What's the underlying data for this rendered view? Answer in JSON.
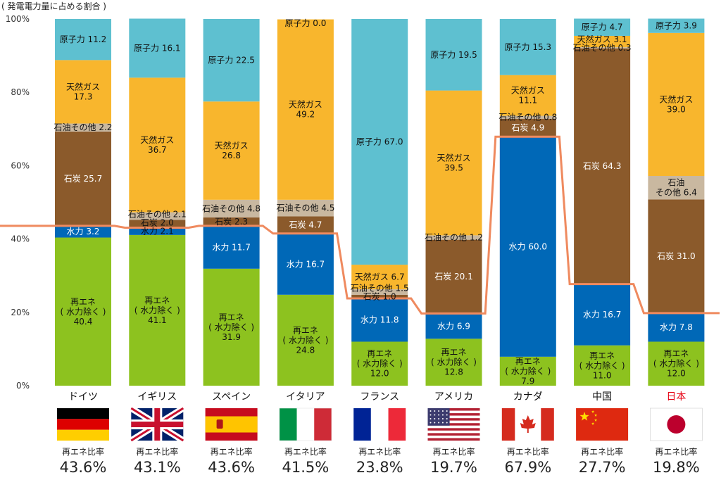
{
  "unit_label": "( 発電電力量に占める割合 )",
  "ratio_caption": "再エネ比率",
  "chart_data": {
    "type": "bar",
    "stacked": true,
    "ylim": [
      0,
      100
    ],
    "yticks": [
      "0%",
      "20%",
      "40%",
      "60%",
      "80%",
      "100%"
    ],
    "legend": "none",
    "grid": false,
    "colors": {
      "renewable": "#8dc21f",
      "hydro": "#0068b7",
      "coal": "#8b5a2b",
      "oil": "#c9b8a0",
      "gas": "#f8b62d",
      "nuclear": "#5ec0d0",
      "line": "#ef8a5f"
    },
    "categories": [
      "ドイツ",
      "イギリス",
      "スペイン",
      "イタリア",
      "フランス",
      "アメリカ",
      "カナダ",
      "中国",
      "日本"
    ],
    "ratios": [
      "43.6%",
      "43.1%",
      "43.6%",
      "41.5%",
      "23.8%",
      "19.7%",
      "67.9%",
      "27.7%",
      "19.8%"
    ],
    "ratio_values": [
      43.6,
      43.1,
      43.6,
      41.5,
      23.8,
      19.7,
      67.9,
      27.7,
      19.8
    ],
    "flags": [
      "germany",
      "uk",
      "spain",
      "italy",
      "france",
      "usa",
      "canada",
      "china",
      "japan"
    ],
    "countries": [
      {
        "name": "ドイツ",
        "segments": [
          {
            "key": "renewable",
            "value": 40.4,
            "label": [
              "再エネ",
              "( 水力除く )",
              "40.4"
            ]
          },
          {
            "key": "hydro",
            "value": 3.2,
            "label": [
              "水力 3.2"
            ]
          },
          {
            "key": "coal",
            "value": 25.7,
            "label": [
              "石炭 25.7"
            ]
          },
          {
            "key": "oil",
            "value": 2.2,
            "label": [
              "石油その他 2.2"
            ]
          },
          {
            "key": "gas",
            "value": 17.3,
            "label": [
              "天然ガス",
              "17.3"
            ]
          },
          {
            "key": "nuclear",
            "value": 11.2,
            "label": [
              "原子力 11.2"
            ]
          }
        ]
      },
      {
        "name": "イギリス",
        "segments": [
          {
            "key": "renewable",
            "value": 41.1,
            "label": [
              "再エネ",
              "( 水力除く )",
              "41.1"
            ]
          },
          {
            "key": "hydro",
            "value": 2.1,
            "label": [
              "水力 2.1"
            ]
          },
          {
            "key": "coal",
            "value": 2.0,
            "label": [
              "石炭 2.0"
            ]
          },
          {
            "key": "oil",
            "value": 2.1,
            "label": [
              "石油その他 2.1"
            ]
          },
          {
            "key": "gas",
            "value": 36.7,
            "label": [
              "天然ガス",
              "36.7"
            ]
          },
          {
            "key": "nuclear",
            "value": 16.1,
            "label": [
              "原子力 16.1"
            ]
          }
        ]
      },
      {
        "name": "スペイン",
        "segments": [
          {
            "key": "renewable",
            "value": 31.9,
            "label": [
              "再エネ",
              "( 水力除く )",
              "31.9"
            ]
          },
          {
            "key": "hydro",
            "value": 11.7,
            "label": [
              "水力 11.7"
            ]
          },
          {
            "key": "coal",
            "value": 2.3,
            "label": [
              "石炭 2.3"
            ]
          },
          {
            "key": "oil",
            "value": 4.8,
            "label": [
              "石油その他 4.8"
            ]
          },
          {
            "key": "gas",
            "value": 26.8,
            "label": [
              "天然ガス",
              "26.8"
            ]
          },
          {
            "key": "nuclear",
            "value": 22.5,
            "label": [
              "原子力 22.5"
            ]
          }
        ]
      },
      {
        "name": "イタリア",
        "segments": [
          {
            "key": "renewable",
            "value": 24.8,
            "label": [
              "再エネ",
              "( 水力除く )",
              "24.8"
            ]
          },
          {
            "key": "hydro",
            "value": 16.7,
            "label": [
              "水力 16.7"
            ]
          },
          {
            "key": "coal",
            "value": 4.7,
            "label": [
              "石炭 4.7"
            ]
          },
          {
            "key": "oil",
            "value": 4.5,
            "label": [
              "石油その他 4.5"
            ]
          },
          {
            "key": "gas",
            "value": 49.2,
            "label": [
              "天然ガス",
              "49.2"
            ]
          },
          {
            "key": "nuclear",
            "value": 0.0,
            "label": [
              "原子力 0.0"
            ]
          }
        ]
      },
      {
        "name": "フランス",
        "segments": [
          {
            "key": "renewable",
            "value": 12.0,
            "label": [
              "再エネ",
              "( 水力除く )",
              "12.0"
            ]
          },
          {
            "key": "hydro",
            "value": 11.8,
            "label": [
              "水力 11.8"
            ]
          },
          {
            "key": "coal",
            "value": 1.0,
            "label": [
              "石炭 1.0"
            ]
          },
          {
            "key": "oil",
            "value": 1.5,
            "label": [
              "石油その他 1.5"
            ]
          },
          {
            "key": "gas",
            "value": 6.7,
            "label": [
              "天然ガス 6.7"
            ]
          },
          {
            "key": "nuclear",
            "value": 67.0,
            "label": [
              "原子力 67.0"
            ]
          }
        ]
      },
      {
        "name": "アメリカ",
        "segments": [
          {
            "key": "renewable",
            "value": 12.8,
            "label": [
              "再エネ",
              "( 水力除く )",
              "12.8"
            ]
          },
          {
            "key": "hydro",
            "value": 6.9,
            "label": [
              "水力 6.9"
            ]
          },
          {
            "key": "coal",
            "value": 20.1,
            "label": [
              "石炭 20.1"
            ]
          },
          {
            "key": "oil",
            "value": 1.2,
            "label": [
              "石油その他 1.2"
            ]
          },
          {
            "key": "gas",
            "value": 39.5,
            "label": [
              "天然ガス",
              "39.5"
            ]
          },
          {
            "key": "nuclear",
            "value": 19.5,
            "label": [
              "原子力 19.5"
            ]
          }
        ]
      },
      {
        "name": "カナダ",
        "segments": [
          {
            "key": "renewable",
            "value": 7.9,
            "label": [
              "再エネ",
              "( 水力除く )",
              "7.9"
            ]
          },
          {
            "key": "hydro",
            "value": 60.0,
            "label": [
              "水力 60.0"
            ]
          },
          {
            "key": "coal",
            "value": 4.9,
            "label": [
              "石炭 4.9"
            ]
          },
          {
            "key": "oil",
            "value": 0.8,
            "label": [
              "石油その他 0.8"
            ]
          },
          {
            "key": "gas",
            "value": 11.1,
            "label": [
              "天然ガス",
              "11.1"
            ]
          },
          {
            "key": "nuclear",
            "value": 15.3,
            "label": [
              "原子力 15.3"
            ]
          }
        ]
      },
      {
        "name": "中国",
        "segments": [
          {
            "key": "renewable",
            "value": 11.0,
            "label": [
              "再エネ",
              "( 水力除く )",
              "11.0"
            ]
          },
          {
            "key": "hydro",
            "value": 16.7,
            "label": [
              "水力 16.7"
            ]
          },
          {
            "key": "coal",
            "value": 64.3,
            "label": [
              "石炭 64.3"
            ]
          },
          {
            "key": "oil",
            "value": 0.3,
            "label": [
              "石油その他 0.3"
            ]
          },
          {
            "key": "gas",
            "value": 3.1,
            "label": [
              "天然ガス 3.1"
            ]
          },
          {
            "key": "nuclear",
            "value": 4.7,
            "label": [
              "原子力 4.7"
            ]
          }
        ]
      },
      {
        "name": "日本",
        "segments": [
          {
            "key": "renewable",
            "value": 12.0,
            "label": [
              "再エネ",
              "( 水力除く )",
              "12.0"
            ]
          },
          {
            "key": "hydro",
            "value": 7.8,
            "label": [
              "水力 7.8"
            ]
          },
          {
            "key": "coal",
            "value": 31.0,
            "label": [
              "石炭 31.0"
            ]
          },
          {
            "key": "oil",
            "value": 6.4,
            "label": [
              "石油",
              "その他 6.4"
            ]
          },
          {
            "key": "gas",
            "value": 39.0,
            "label": [
              "天然ガス",
              "39.0"
            ]
          },
          {
            "key": "nuclear",
            "value": 3.9,
            "label": [
              "原子力 3.9"
            ]
          }
        ]
      }
    ]
  }
}
